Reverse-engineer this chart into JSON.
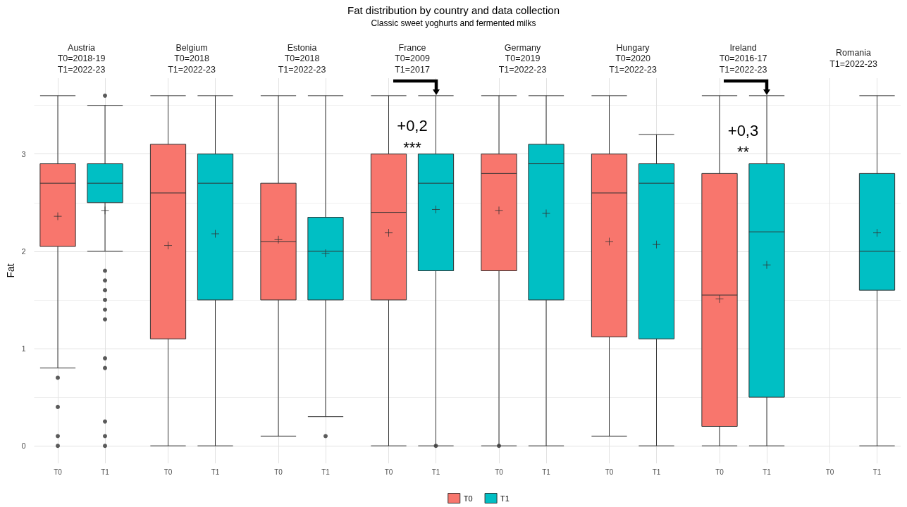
{
  "chart_data": {
    "type": "box",
    "title": "Fat distribution by country and data collection",
    "subtitle": "Classic sweet yoghurts and fermented milks",
    "ylabel": "Fat",
    "categories": [
      "Austria\nT0=2018-19\nT1=2022-23",
      "Belgium\nT0=2018\nT1=2022-23",
      "Estonia\nT0=2018\nT1=2022-23",
      "France\nT0=2009\nT1=2017",
      "Germany\nT0=2019\nT1=2022-23",
      "Hungary\nT0=2020\nT1=2022-23",
      "Ireland\nT0=2016-17\nT1=2022-23",
      "Romania\nT1=2022-23"
    ],
    "series": [
      {
        "name": "T0",
        "color": "#f8766d",
        "boxes": [
          {
            "low": 0.8,
            "q1": 2.05,
            "median": 2.7,
            "q3": 2.9,
            "high": 3.6,
            "mean": 2.36,
            "outliers": [
              0.7,
              0.4,
              0.1,
              0
            ]
          },
          {
            "low": 0,
            "q1": 1.1,
            "median": 2.6,
            "q3": 3.1,
            "high": 3.6,
            "mean": 2.06
          },
          {
            "low": 0.1,
            "q1": 1.5,
            "median": 2.1,
            "q3": 2.7,
            "high": 3.6,
            "mean": 2.12
          },
          {
            "low": 0,
            "q1": 1.5,
            "median": 2.4,
            "q3": 3.0,
            "high": 3.6,
            "mean": 2.19
          },
          {
            "low": 0,
            "q1": 1.8,
            "median": 2.8,
            "q3": 3.0,
            "high": 3.6,
            "mean": 2.42,
            "outliers": [
              0
            ]
          },
          {
            "low": 0.1,
            "q1": 1.12,
            "median": 2.6,
            "q3": 3.0,
            "high": 3.6,
            "mean": 2.1
          },
          {
            "low": 0,
            "q1": 0.2,
            "median": 1.55,
            "q3": 2.8,
            "high": 3.6,
            "mean": 1.51
          },
          null
        ]
      },
      {
        "name": "T1",
        "color": "#00bfc4",
        "boxes": [
          {
            "low": 2.0,
            "q1": 2.5,
            "median": 2.7,
            "q3": 2.9,
            "high": 3.5,
            "mean": 2.42,
            "outliers": [
              3.6,
              1.8,
              1.7,
              1.6,
              1.5,
              1.4,
              1.3,
              0.9,
              0.8,
              0.25,
              0.1,
              0
            ]
          },
          {
            "low": 0,
            "q1": 1.5,
            "median": 2.7,
            "q3": 3.0,
            "high": 3.6,
            "mean": 2.18
          },
          {
            "low": 0.3,
            "q1": 1.5,
            "median": 2.0,
            "q3": 2.35,
            "high": 3.6,
            "mean": 1.98,
            "outliers": [
              0.1
            ]
          },
          {
            "low": 0,
            "q1": 1.8,
            "median": 2.7,
            "q3": 3.0,
            "high": 3.6,
            "mean": 2.43,
            "outliers": [
              0
            ]
          },
          {
            "low": 0,
            "q1": 1.5,
            "median": 2.9,
            "q3": 3.1,
            "high": 3.6,
            "mean": 2.39
          },
          {
            "low": 0,
            "q1": 1.1,
            "median": 2.7,
            "q3": 2.9,
            "high": 3.2,
            "mean": 2.07
          },
          {
            "low": 0,
            "q1": 0.5,
            "median": 2.2,
            "q3": 2.9,
            "high": 3.6,
            "mean": 1.86
          },
          {
            "low": 0,
            "q1": 1.6,
            "median": 2.0,
            "q3": 2.8,
            "high": 3.6,
            "mean": 2.19
          }
        ]
      }
    ],
    "ylim": [
      -0.18,
      3.78
    ],
    "yticks": [
      0,
      {
        "value": 0.5,
        "label": null
      },
      1,
      {
        "value": 1.5,
        "label": null
      },
      2,
      {
        "value": 2.5,
        "label": null
      },
      3,
      {
        "value": 3.5,
        "label": null
      }
    ],
    "grid": true,
    "legend": "bottom",
    "annotations": [
      "+0,2",
      "***",
      "+0,3",
      "**"
    ]
  }
}
